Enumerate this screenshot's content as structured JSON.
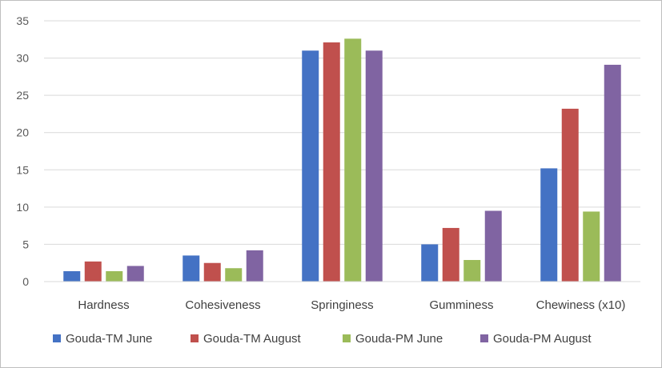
{
  "chart_data": {
    "type": "bar",
    "title": "",
    "xlabel": "",
    "ylabel": "",
    "ylim": [
      0,
      35
    ],
    "yticks": [
      0,
      5,
      10,
      15,
      20,
      25,
      30,
      35
    ],
    "grid": true,
    "legend_position": "bottom",
    "categories": [
      "Hardness",
      "Cohesiveness",
      "Springiness",
      "Gumminess",
      "Chewiness (x10)"
    ],
    "series": [
      {
        "name": "Gouda-TM June",
        "color": "#4472c4",
        "values": [
          1.4,
          3.5,
          31.0,
          5.0,
          15.2
        ]
      },
      {
        "name": "Gouda-TM August",
        "color": "#c0504d",
        "values": [
          2.7,
          2.5,
          32.1,
          7.2,
          23.2
        ]
      },
      {
        "name": "Gouda-PM June",
        "color": "#9bbb59",
        "values": [
          1.4,
          1.8,
          32.6,
          2.9,
          9.4
        ]
      },
      {
        "name": "Gouda-PM August",
        "color": "#8064a2",
        "values": [
          2.1,
          4.2,
          31.0,
          9.5,
          29.1
        ]
      }
    ]
  }
}
